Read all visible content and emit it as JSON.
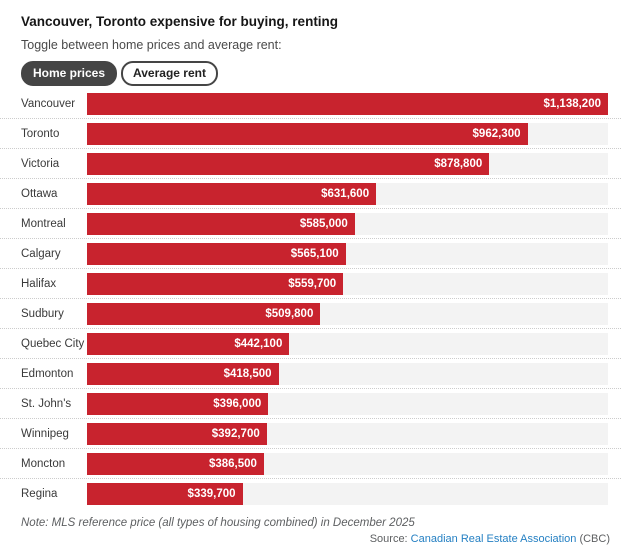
{
  "header": {
    "title": "Vancouver, Toronto expensive for buying, renting",
    "subtitle": "Toggle between home prices and average rent:",
    "toggle": {
      "active_label": "Home prices",
      "inactive_label": "Average rent"
    }
  },
  "chart_data": {
    "type": "bar",
    "orientation": "horizontal",
    "title": "Vancouver, Toronto expensive for buying, renting",
    "xlabel": "",
    "ylabel": "",
    "xlim": [
      0,
      1138200
    ],
    "grid": false,
    "legend": "none",
    "categories": [
      "Vancouver",
      "Toronto",
      "Victoria",
      "Ottawa",
      "Montreal",
      "Calgary",
      "Halifax",
      "Sudbury",
      "Quebec City",
      "Edmonton",
      "St. John's",
      "Winnipeg",
      "Moncton",
      "Regina"
    ],
    "values": [
      1138200,
      962300,
      878800,
      631600,
      585000,
      565100,
      559700,
      509800,
      442100,
      418500,
      396000,
      392700,
      386500,
      339700
    ],
    "value_labels": [
      "$1,138,200",
      "$962,300",
      "$878,800",
      "$631,600",
      "$585,000",
      "$565,100",
      "$559,700",
      "$509,800",
      "$442,100",
      "$418,500",
      "$396,000",
      "$392,700",
      "$386,500",
      "$339,700"
    ],
    "bar_color": "#c8232e",
    "track_color": "#f3f3f3",
    "value_label_color": "#ffffff"
  },
  "footer": {
    "note": "Note: MLS reference price (all types of housing combined) in December 2025",
    "source_prefix": "Source: ",
    "source_link": "Canadian Real Estate Association",
    "source_suffix": " (CBC)"
  },
  "colors": {
    "bar": "#c8232e",
    "track": "#f3f3f3",
    "toggle_active_bg": "#454545",
    "link": "#2580c3",
    "separator": "#cccccc"
  }
}
